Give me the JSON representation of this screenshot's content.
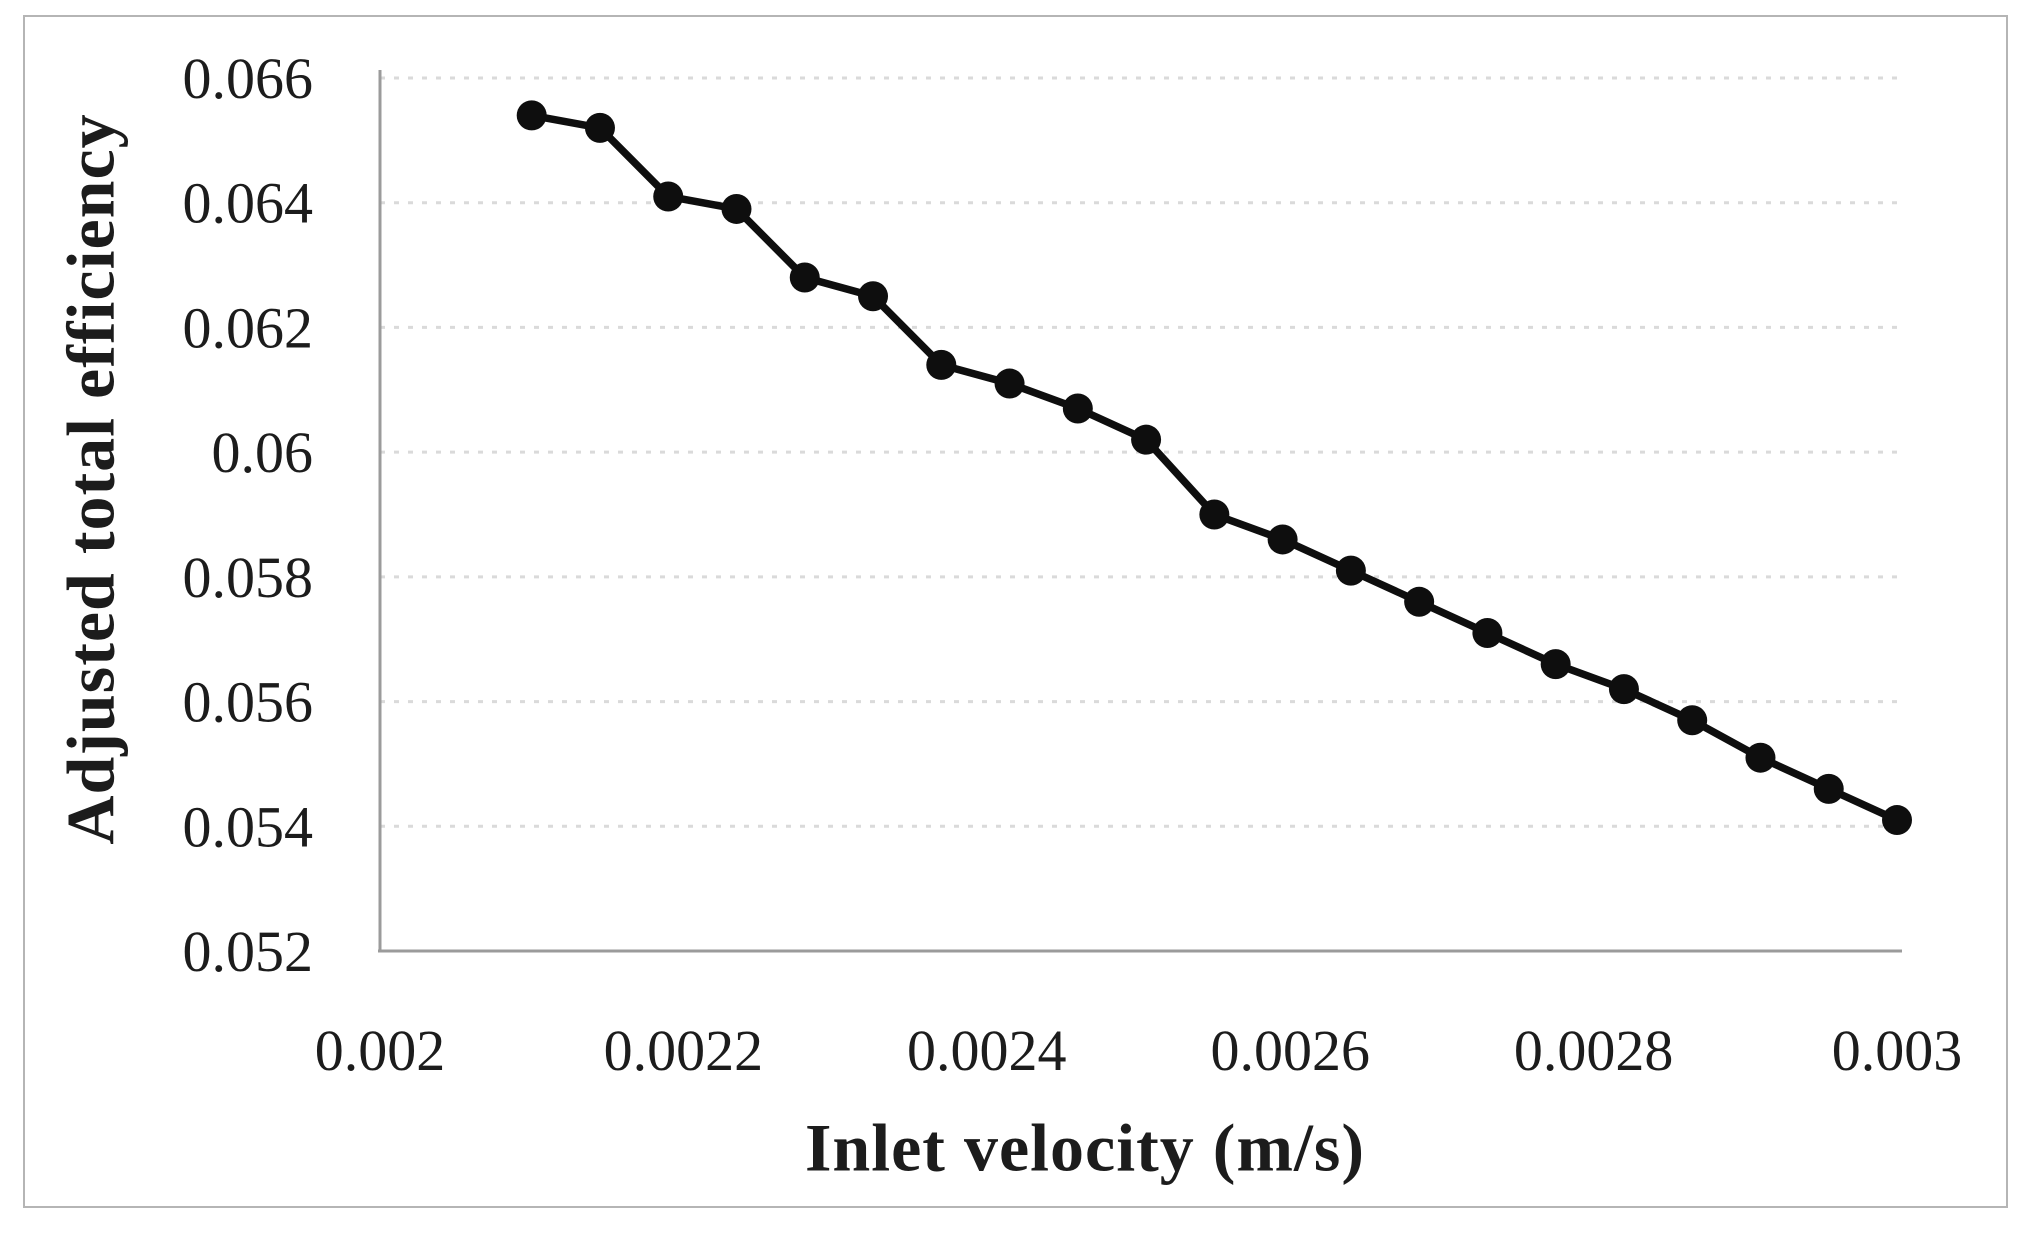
{
  "chart_data": {
    "type": "line",
    "title": "",
    "xlabel": "Inlet velocity (m/s)",
    "ylabel": "Adjusted total efficiency",
    "xlim": [
      0.002,
      0.003
    ],
    "ylim": [
      0.052,
      0.066
    ],
    "x_ticks": [
      "0.002",
      "0.0022",
      "0.0024",
      "0.0026",
      "0.0028",
      "0.003"
    ],
    "x_tick_values": [
      0.002,
      0.0022,
      0.0024,
      0.0026,
      0.0028,
      0.003
    ],
    "y_ticks": [
      "0.066",
      "0.064",
      "0.062",
      "0.06",
      "0.058",
      "0.056",
      "0.054",
      "0.052"
    ],
    "y_tick_values": [
      0.066,
      0.064,
      0.062,
      0.06,
      0.058,
      0.056,
      0.054,
      0.052
    ],
    "grid": "horizontal-dotted",
    "legend": "none",
    "marker": "circle",
    "series": [
      {
        "name": "Adjusted total efficiency",
        "x": [
          0.0021,
          0.002145,
          0.00219,
          0.002235,
          0.00228,
          0.002325,
          0.00237,
          0.002415,
          0.00246,
          0.002505,
          0.00255,
          0.002595,
          0.00264,
          0.002685,
          0.00273,
          0.002775,
          0.00282,
          0.002865,
          0.00291,
          0.002955,
          0.003
        ],
        "y": [
          0.0654,
          0.0652,
          0.0641,
          0.0639,
          0.0628,
          0.0625,
          0.0614,
          0.0611,
          0.0607,
          0.0602,
          0.059,
          0.0586,
          0.0581,
          0.0576,
          0.0571,
          0.0566,
          0.0562,
          0.0557,
          0.0551,
          0.0546,
          0.0541
        ]
      }
    ],
    "colors": {
      "line": "#0e0e0e",
      "axis": "#9b9b9b",
      "grid": "#dadada",
      "frame": "#b5b5b5",
      "text": "#1c1c1c"
    }
  }
}
